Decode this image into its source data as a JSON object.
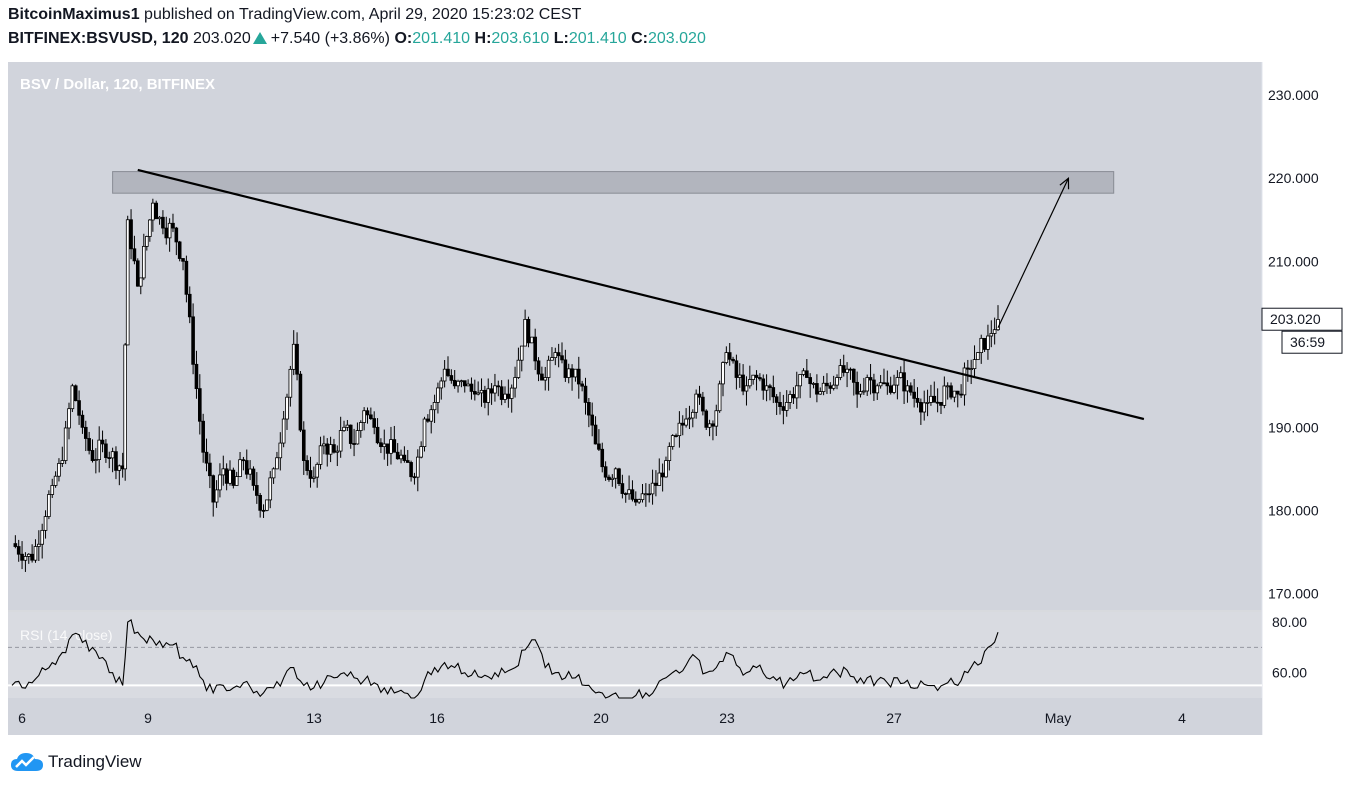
{
  "header": {
    "author": "BitcoinMaximus1",
    "published_text": " published on TradingView.com, April 29, 2020 15:23:02 CEST",
    "symbol": "BITFINEX:BSVUSD, 120",
    "last": "203.020",
    "change": "+7.540 (+3.86%)",
    "o_label": "O:",
    "o_value": "201.410",
    "h_label": "H:",
    "h_value": "203.610",
    "l_label": "L:",
    "l_value": "201.410",
    "c_label": "C:",
    "c_value": "203.020"
  },
  "footer": {
    "brand": "TradingView"
  },
  "colors": {
    "panel_bg": "#d1d4dc",
    "panel_bg_rsi": "#d9dbe1",
    "candle": "#000000",
    "resistance_box": "#b2b5be",
    "axis_bg": "#ffffff",
    "up_accent": "#26a69a",
    "brand_blue": "#2196f3"
  },
  "chart_data": {
    "type": "candlestick",
    "title": "BSV / Dollar, 120, BITFINEX",
    "x_ticks": [
      "6",
      "9",
      "13",
      "16",
      "20",
      "23",
      "27",
      "May",
      "4"
    ],
    "y_ticks": [
      "230.000",
      "220.000",
      "210.000",
      "190.000",
      "180.000",
      "170.000"
    ],
    "ylim": [
      168,
      234
    ],
    "price_label": "203.020",
    "countdown_label": "36:59",
    "price_series_approx": [
      [
        0,
        176
      ],
      [
        4,
        174
      ],
      [
        8,
        183
      ],
      [
        10,
        186
      ],
      [
        12,
        195
      ],
      [
        14,
        190
      ],
      [
        16,
        186
      ],
      [
        18,
        188
      ],
      [
        22,
        185
      ],
      [
        23,
        215
      ],
      [
        25,
        207
      ],
      [
        28,
        217
      ],
      [
        30,
        214
      ],
      [
        32,
        214
      ],
      [
        34,
        210
      ],
      [
        38,
        187
      ],
      [
        40,
        181
      ],
      [
        42,
        185
      ],
      [
        44,
        183
      ],
      [
        46,
        186
      ],
      [
        48,
        183
      ],
      [
        50,
        180
      ],
      [
        52,
        185
      ],
      [
        54,
        191
      ],
      [
        56,
        200
      ],
      [
        58,
        186
      ],
      [
        60,
        184
      ],
      [
        62,
        188
      ],
      [
        64,
        187
      ],
      [
        66,
        190
      ],
      [
        68,
        188
      ],
      [
        70,
        192
      ],
      [
        72,
        190
      ],
      [
        74,
        188
      ],
      [
        76,
        187
      ],
      [
        78,
        186
      ],
      [
        80,
        184
      ],
      [
        82,
        191
      ],
      [
        84,
        193
      ],
      [
        86,
        197
      ],
      [
        88,
        195
      ],
      [
        90,
        195
      ],
      [
        92,
        194
      ],
      [
        94,
        193
      ],
      [
        96,
        195
      ],
      [
        98,
        194
      ],
      [
        100,
        196
      ],
      [
        102,
        203
      ],
      [
        104,
        198
      ],
      [
        106,
        196
      ],
      [
        108,
        199
      ],
      [
        110,
        196
      ],
      [
        112,
        197
      ],
      [
        114,
        193
      ],
      [
        116,
        188
      ],
      [
        118,
        184
      ],
      [
        120,
        185
      ],
      [
        122,
        182
      ],
      [
        124,
        181
      ],
      [
        126,
        182
      ],
      [
        128,
        183
      ],
      [
        130,
        186
      ],
      [
        132,
        189
      ],
      [
        134,
        191
      ],
      [
        136,
        194
      ],
      [
        138,
        190
      ],
      [
        140,
        192
      ],
      [
        142,
        199
      ],
      [
        144,
        196
      ],
      [
        146,
        195
      ],
      [
        148,
        196
      ],
      [
        150,
        195
      ],
      [
        152,
        193
      ],
      [
        154,
        193
      ],
      [
        156,
        195
      ],
      [
        158,
        196
      ],
      [
        160,
        194
      ],
      [
        162,
        195
      ],
      [
        164,
        196
      ],
      [
        166,
        197
      ],
      [
        168,
        194
      ],
      [
        170,
        196
      ],
      [
        172,
        195
      ],
      [
        174,
        195
      ],
      [
        176,
        196
      ],
      [
        178,
        195
      ],
      [
        180,
        193
      ],
      [
        182,
        193
      ],
      [
        184,
        193
      ],
      [
        186,
        195
      ],
      [
        188,
        194
      ],
      [
        190,
        197
      ],
      [
        192,
        199
      ],
      [
        194,
        201
      ],
      [
        196,
        203
      ]
    ],
    "candles_x_range": [
      0,
      196
    ],
    "annotations": {
      "trendline": {
        "from": [
          25,
          221
        ],
        "to": [
          225,
          191
        ]
      },
      "resistance_zone": {
        "x_range": [
          20,
          219
        ],
        "y_range": [
          218.2,
          220.8
        ]
      },
      "arrow": {
        "from": [
          196,
          202
        ],
        "to": [
          210,
          220
        ]
      }
    },
    "rsi": {
      "label": "RSI (14, close)",
      "y_ticks": [
        "80.00",
        "60.00"
      ],
      "ylim": [
        50,
        84
      ],
      "overbought": 70,
      "oversold": 55,
      "values_approx": [
        [
          0,
          55
        ],
        [
          4,
          56
        ],
        [
          8,
          64
        ],
        [
          10,
          68
        ],
        [
          12,
          75
        ],
        [
          14,
          72
        ],
        [
          16,
          70
        ],
        [
          18,
          66
        ],
        [
          20,
          60
        ],
        [
          22,
          55
        ],
        [
          23,
          80
        ],
        [
          25,
          76
        ],
        [
          28,
          73
        ],
        [
          30,
          70
        ],
        [
          32,
          71
        ],
        [
          34,
          66
        ],
        [
          36,
          62
        ],
        [
          38,
          57
        ],
        [
          40,
          52
        ],
        [
          42,
          55
        ],
        [
          44,
          54
        ],
        [
          46,
          56
        ],
        [
          48,
          52
        ],
        [
          50,
          52
        ],
        [
          52,
          54
        ],
        [
          54,
          58
        ],
        [
          56,
          62
        ],
        [
          58,
          55
        ],
        [
          60,
          54
        ],
        [
          62,
          56
        ],
        [
          64,
          58
        ],
        [
          66,
          60
        ],
        [
          68,
          58
        ],
        [
          70,
          57
        ],
        [
          72,
          56
        ],
        [
          74,
          54
        ],
        [
          76,
          52
        ],
        [
          78,
          52
        ],
        [
          80,
          50
        ],
        [
          82,
          57
        ],
        [
          84,
          62
        ],
        [
          86,
          64
        ],
        [
          88,
          62
        ],
        [
          90,
          60
        ],
        [
          92,
          61
        ],
        [
          94,
          59
        ],
        [
          96,
          60
        ],
        [
          98,
          60
        ],
        [
          100,
          62
        ],
        [
          102,
          69
        ],
        [
          104,
          73
        ],
        [
          106,
          62
        ],
        [
          108,
          60
        ],
        [
          110,
          58
        ],
        [
          112,
          58
        ],
        [
          114,
          55
        ],
        [
          116,
          52
        ],
        [
          118,
          50
        ],
        [
          120,
          52
        ],
        [
          122,
          50
        ],
        [
          124,
          51
        ],
        [
          126,
          52
        ],
        [
          128,
          54
        ],
        [
          130,
          58
        ],
        [
          132,
          61
        ],
        [
          134,
          63
        ],
        [
          136,
          66
        ],
        [
          138,
          60
        ],
        [
          140,
          62
        ],
        [
          142,
          68
        ],
        [
          144,
          63
        ],
        [
          146,
          60
        ],
        [
          148,
          62
        ],
        [
          150,
          58
        ],
        [
          152,
          57
        ],
        [
          154,
          56
        ],
        [
          156,
          58
        ],
        [
          158,
          60
        ],
        [
          160,
          57
        ],
        [
          162,
          58
        ],
        [
          164,
          60
        ],
        [
          166,
          61
        ],
        [
          168,
          56
        ],
        [
          170,
          58
        ],
        [
          172,
          57
        ],
        [
          174,
          56
        ],
        [
          176,
          58
        ],
        [
          178,
          57
        ],
        [
          180,
          54
        ],
        [
          182,
          55
        ],
        [
          184,
          53
        ],
        [
          186,
          56
        ],
        [
          188,
          55
        ],
        [
          190,
          60
        ],
        [
          192,
          63
        ],
        [
          194,
          70
        ],
        [
          196,
          76
        ]
      ]
    }
  }
}
